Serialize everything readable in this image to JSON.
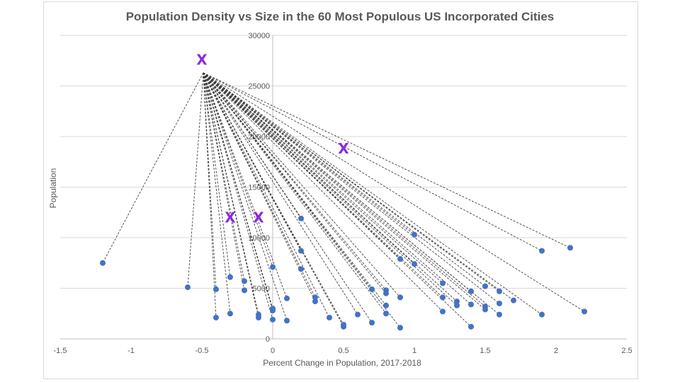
{
  "chart_data": {
    "type": "scatter",
    "title": "Population Density vs Size in the 60 Most Populous US Incorporated Cities",
    "xlabel": "Percent Change in Population, 2017-2018",
    "ylabel": "Population",
    "xlim": [
      -1.5,
      2.5
    ],
    "ylim": [
      0,
      30000
    ],
    "x_ticks": [
      -1.5,
      -1,
      -0.5,
      0,
      0.5,
      1,
      1.5,
      2,
      2.5
    ],
    "y_ticks": [
      0,
      5000,
      10000,
      15000,
      20000,
      25000,
      30000
    ],
    "grid": "horizontal",
    "legend": "none",
    "series_color": "#4472c4",
    "cross_color": "#8a2be2",
    "line_color": "#404040",
    "hub": {
      "x": -0.49,
      "y": 26300
    },
    "points": [
      {
        "x": -1.2,
        "y": 7500
      },
      {
        "x": -0.6,
        "y": 5100
      },
      {
        "x": -0.4,
        "y": 4900
      },
      {
        "x": -0.4,
        "y": 2100
      },
      {
        "x": -0.3,
        "y": 6100
      },
      {
        "x": -0.3,
        "y": 2500
      },
      {
        "x": -0.2,
        "y": 5700
      },
      {
        "x": -0.2,
        "y": 4800
      },
      {
        "x": -0.1,
        "y": 2400
      },
      {
        "x": -0.1,
        "y": 2100
      },
      {
        "x": 0.0,
        "y": 7100
      },
      {
        "x": 0.0,
        "y": 3000
      },
      {
        "x": 0.0,
        "y": 2800
      },
      {
        "x": 0.0,
        "y": 1900
      },
      {
        "x": 0.1,
        "y": 4000
      },
      {
        "x": 0.1,
        "y": 1800
      },
      {
        "x": 0.2,
        "y": 11900
      },
      {
        "x": 0.2,
        "y": 8700
      },
      {
        "x": 0.2,
        "y": 6900
      },
      {
        "x": 0.3,
        "y": 4100
      },
      {
        "x": 0.3,
        "y": 3700
      },
      {
        "x": 0.4,
        "y": 2100
      },
      {
        "x": 0.5,
        "y": 1400
      },
      {
        "x": 0.5,
        "y": 1200
      },
      {
        "x": 0.6,
        "y": 2400
      },
      {
        "x": 0.7,
        "y": 4900
      },
      {
        "x": 0.7,
        "y": 1600
      },
      {
        "x": 0.8,
        "y": 4800
      },
      {
        "x": 0.8,
        "y": 4500
      },
      {
        "x": 0.8,
        "y": 3300
      },
      {
        "x": 0.8,
        "y": 2500
      },
      {
        "x": 0.9,
        "y": 7900
      },
      {
        "x": 0.9,
        "y": 4100
      },
      {
        "x": 0.9,
        "y": 1100
      },
      {
        "x": 1.0,
        "y": 10300
      },
      {
        "x": 1.0,
        "y": 7400
      },
      {
        "x": 1.2,
        "y": 5500
      },
      {
        "x": 1.2,
        "y": 4100
      },
      {
        "x": 1.2,
        "y": 2700
      },
      {
        "x": 1.3,
        "y": 3700
      },
      {
        "x": 1.3,
        "y": 3300
      },
      {
        "x": 1.4,
        "y": 4700
      },
      {
        "x": 1.4,
        "y": 3400
      },
      {
        "x": 1.4,
        "y": 1200
      },
      {
        "x": 1.5,
        "y": 5200
      },
      {
        "x": 1.5,
        "y": 3200
      },
      {
        "x": 1.5,
        "y": 2900
      },
      {
        "x": 1.6,
        "y": 4700
      },
      {
        "x": 1.6,
        "y": 3500
      },
      {
        "x": 1.6,
        "y": 2400
      },
      {
        "x": 1.7,
        "y": 3800
      },
      {
        "x": 1.9,
        "y": 8700
      },
      {
        "x": 1.9,
        "y": 2400
      },
      {
        "x": 2.1,
        "y": 9000
      },
      {
        "x": 2.2,
        "y": 2700
      }
    ],
    "crosses": [
      {
        "label": "X",
        "x": -0.5,
        "y": 27600
      },
      {
        "label": "X",
        "x": 0.5,
        "y": 18800
      },
      {
        "label": "X",
        "x": -0.3,
        "y": 12000
      },
      {
        "label": "X",
        "x": -0.1,
        "y": 12000
      }
    ]
  }
}
